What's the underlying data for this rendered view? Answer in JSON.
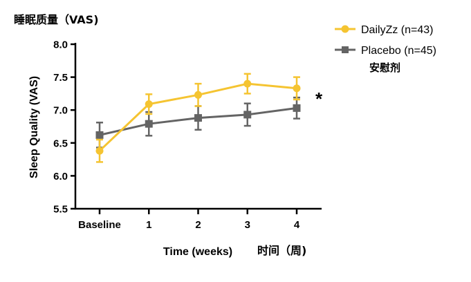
{
  "chart_data": {
    "type": "line",
    "title": "睡眠质量（VAS)",
    "ylabel": "Sleep Quality (VAS)",
    "xlabel": "Time  (weeks)",
    "xlabel_cn": "时间（周)",
    "categories": [
      "Baseline",
      "1",
      "2",
      "3",
      "4"
    ],
    "yticks": [
      "8.0",
      "7.5",
      "7.0",
      "6.5",
      "6.0",
      "5.5"
    ],
    "ylim": [
      5.5,
      8.0
    ],
    "legend_position": "top-right",
    "significance_marker": "*",
    "series": [
      {
        "name": "DailyZz (n=43)",
        "color": "#f5c431",
        "marker": "circle",
        "values": [
          6.38,
          7.09,
          7.23,
          7.4,
          7.33
        ],
        "error": [
          0.17,
          0.15,
          0.17,
          0.15,
          0.17
        ]
      },
      {
        "name": "Placebo  (n=45)",
        "name_cn": "安慰剂",
        "color": "#646464",
        "marker": "square",
        "values": [
          6.62,
          6.79,
          6.88,
          6.93,
          7.03
        ],
        "error": [
          0.19,
          0.18,
          0.18,
          0.17,
          0.16
        ]
      }
    ]
  }
}
